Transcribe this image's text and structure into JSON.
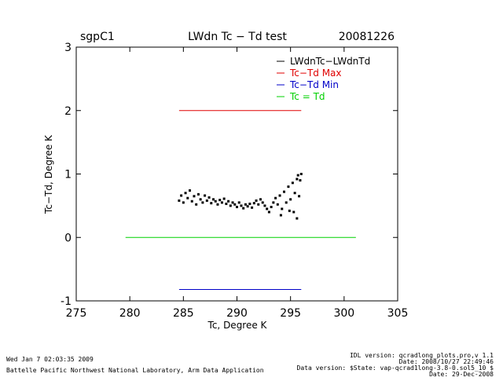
{
  "header": {
    "site": "sgpC1",
    "title": "LWdn Tc − Td test",
    "date": "20081226"
  },
  "footer": {
    "left_line1": "Wed Jan  7 02:03:35 2009",
    "left_line2": "Battelle Pacific Northwest National Laboratory, Arm Data Application",
    "right_line1": "IDL version: qcradlong_plots.pro,v 1.1",
    "right_line2": "Date: 2008/10/27 22:49:46",
    "right_line3": "Data version: $State: vap-qcrad1long-3.8-0.sol5_10 $",
    "right_line4": "Date: 29-Dec-2008"
  },
  "chart_data": {
    "type": "scatter",
    "title": "LWdn Tc − Td test",
    "xlabel": "Tc, Degree K",
    "ylabel": "Tc−Td, Degree K",
    "xlim": [
      275,
      305
    ],
    "ylim": [
      -1,
      3
    ],
    "xticks": [
      275,
      280,
      285,
      290,
      295,
      300,
      305
    ],
    "yticks": [
      -1,
      0,
      1,
      2,
      3
    ],
    "legend_position": "top-right",
    "series": [
      {
        "name": "LWdnTc−LWdnTd",
        "kind": "points",
        "color": "#000000",
        "points": [
          [
            284.6,
            0.58
          ],
          [
            284.8,
            0.66
          ],
          [
            285.0,
            0.55
          ],
          [
            285.2,
            0.7
          ],
          [
            285.4,
            0.62
          ],
          [
            285.6,
            0.74
          ],
          [
            285.8,
            0.57
          ],
          [
            286.0,
            0.65
          ],
          [
            286.2,
            0.52
          ],
          [
            286.4,
            0.68
          ],
          [
            286.6,
            0.6
          ],
          [
            286.8,
            0.55
          ],
          [
            287.0,
            0.66
          ],
          [
            287.2,
            0.58
          ],
          [
            287.4,
            0.63
          ],
          [
            287.6,
            0.54
          ],
          [
            287.8,
            0.6
          ],
          [
            288.0,
            0.57
          ],
          [
            288.2,
            0.52
          ],
          [
            288.4,
            0.59
          ],
          [
            288.6,
            0.55
          ],
          [
            288.8,
            0.61
          ],
          [
            289.0,
            0.53
          ],
          [
            289.2,
            0.57
          ],
          [
            289.4,
            0.5
          ],
          [
            289.6,
            0.55
          ],
          [
            289.8,
            0.52
          ],
          [
            290.0,
            0.48
          ],
          [
            290.2,
            0.55
          ],
          [
            290.4,
            0.5
          ],
          [
            290.6,
            0.46
          ],
          [
            290.8,
            0.52
          ],
          [
            291.0,
            0.49
          ],
          [
            291.2,
            0.53
          ],
          [
            291.4,
            0.47
          ],
          [
            291.6,
            0.54
          ],
          [
            291.8,
            0.58
          ],
          [
            292.0,
            0.52
          ],
          [
            292.2,
            0.6
          ],
          [
            292.4,
            0.55
          ],
          [
            292.6,
            0.5
          ],
          [
            292.8,
            0.45
          ],
          [
            293.0,
            0.4
          ],
          [
            293.2,
            0.48
          ],
          [
            293.4,
            0.55
          ],
          [
            293.6,
            0.62
          ],
          [
            293.8,
            0.52
          ],
          [
            294.0,
            0.66
          ],
          [
            294.2,
            0.45
          ],
          [
            294.4,
            0.72
          ],
          [
            294.6,
            0.55
          ],
          [
            294.8,
            0.8
          ],
          [
            295.0,
            0.6
          ],
          [
            295.2,
            0.86
          ],
          [
            295.4,
            0.7
          ],
          [
            295.6,
            0.92
          ],
          [
            295.8,
            0.65
          ],
          [
            296.0,
            1.0
          ],
          [
            295.7,
            0.98
          ],
          [
            295.9,
            0.9
          ],
          [
            295.3,
            0.4
          ],
          [
            295.6,
            0.3
          ],
          [
            294.9,
            0.42
          ],
          [
            294.1,
            0.35
          ]
        ]
      },
      {
        "name": "Tc−Td Max",
        "kind": "line",
        "color": "#e00000",
        "x": [
          284.6,
          296.0
        ],
        "y": [
          2.0,
          2.0
        ]
      },
      {
        "name": "Tc−Td Min",
        "kind": "line",
        "color": "#0000c8",
        "x": [
          284.6,
          296.0
        ],
        "y": [
          -0.82,
          -0.82
        ]
      },
      {
        "name": "Tc = Td",
        "kind": "line",
        "color": "#00d000",
        "x": [
          279.6,
          301.1
        ],
        "y": [
          0,
          0
        ]
      }
    ]
  }
}
